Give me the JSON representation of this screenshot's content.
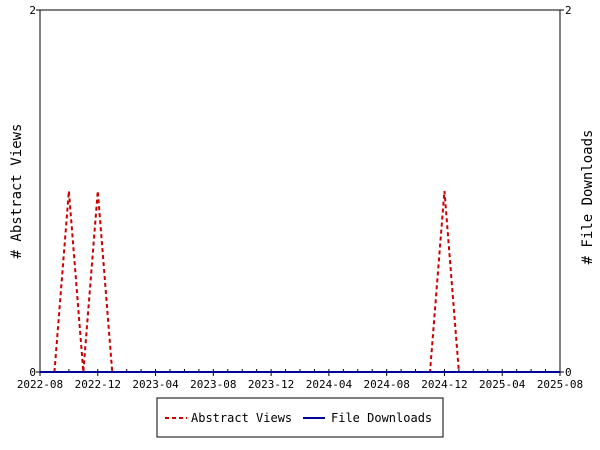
{
  "chart_data": {
    "type": "line",
    "ylabel_left": "# Abstract Views",
    "ylabel_right": "# File Downloads",
    "ylim": [
      0,
      2
    ],
    "y_ticks": [
      "0",
      "2"
    ],
    "xlim": [
      "2022-08",
      "2025-08"
    ],
    "x_tick_labels": [
      "2022-08",
      "2022-12",
      "2023-04",
      "2023-08",
      "2023-12",
      "2024-04",
      "2024-08",
      "2024-12",
      "2025-04",
      "2025-08"
    ],
    "legend_position": "bottom",
    "series": [
      {
        "name": "Abstract Views",
        "color": "#cc0000",
        "style": "dashed",
        "x": [
          "2022-09",
          "2022-10",
          "2022-11",
          "2022-12",
          "2023-01",
          "2024-11",
          "2024-12",
          "2025-01"
        ],
        "values": [
          0,
          1,
          0,
          1,
          0,
          0,
          1,
          0
        ]
      },
      {
        "name": "File Downloads",
        "color": "#000099",
        "style": "solid",
        "x": [
          "2022-08",
          "2025-08"
        ],
        "values": [
          0,
          0
        ]
      }
    ]
  }
}
